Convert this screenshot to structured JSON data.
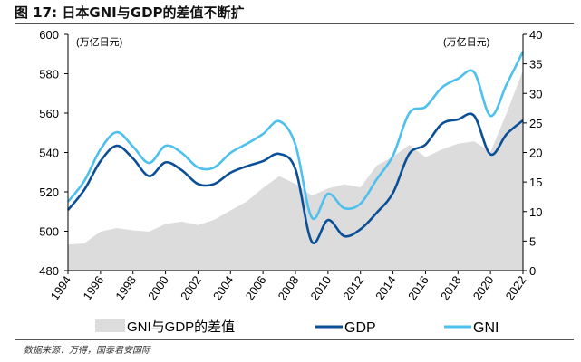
{
  "title": "图 17:  日本GNI与GDP的差值不断扩",
  "source": "数据来源：万得，国泰君安国际",
  "chart_data": {
    "type": "line",
    "x": [
      1994,
      1995,
      1996,
      1997,
      1998,
      1999,
      2000,
      2001,
      2002,
      2003,
      2004,
      2005,
      2006,
      2007,
      2008,
      2009,
      2010,
      2011,
      2012,
      2013,
      2014,
      2015,
      2016,
      2017,
      2018,
      2019,
      2020,
      2021,
      2022
    ],
    "series": [
      {
        "name": "GNI与GDP的差值",
        "type": "area",
        "axis": "right",
        "color": "#dcdcdc",
        "values": [
          4.4,
          4.6,
          6.6,
          7.2,
          6.8,
          6.6,
          7.9,
          8.3,
          7.7,
          8.6,
          10.2,
          11.7,
          14.0,
          16.0,
          14.7,
          12.7,
          13.9,
          14.6,
          14.1,
          17.8,
          19.3,
          21.3,
          19.2,
          20.5,
          21.5,
          21.9,
          20.1,
          26.7,
          33.9
        ]
      },
      {
        "name": "GDP",
        "type": "line",
        "axis": "left",
        "color": "#0b4f97",
        "values": [
          510.8,
          521,
          535.6,
          543.4,
          537,
          528,
          535,
          531,
          524,
          524,
          529.7,
          533,
          535.6,
          539.3,
          531.5,
          494.7,
          505.7,
          497.5,
          501,
          509.4,
          519.5,
          539.3,
          544,
          554.5,
          556.8,
          558.6,
          539,
          549.4,
          556.3
        ]
      },
      {
        "name": "GNI",
        "type": "line",
        "axis": "left",
        "color": "#4dc0ee",
        "values": [
          515,
          525.5,
          541.6,
          550.3,
          543,
          534.7,
          543.4,
          539.8,
          532.4,
          532.4,
          539.8,
          544.4,
          549.4,
          555.9,
          543.9,
          507,
          519,
          511.7,
          514,
          526.4,
          538.4,
          560,
          563.2,
          572.9,
          577.5,
          580.7,
          558.6,
          574.7,
          591.3
        ]
      }
    ],
    "ylim_left": [
      480,
      600
    ],
    "yticks_left": [
      "480",
      "500",
      "520",
      "540",
      "560",
      "580",
      "600"
    ],
    "ylim_right": [
      0,
      40
    ],
    "yticks_right": [
      "0",
      "5",
      "10",
      "15",
      "20",
      "25",
      "30",
      "35",
      "40"
    ],
    "xticks": [
      "1994",
      "1996",
      "1998",
      "2000",
      "2002",
      "2004",
      "2006",
      "2008",
      "2010",
      "2012",
      "2014",
      "2016",
      "2018",
      "2020",
      "2022"
    ],
    "ylabel_left": "(万亿日元)",
    "ylabel_right": "(万亿日元)",
    "legend_position": "bottom",
    "grid": false
  }
}
